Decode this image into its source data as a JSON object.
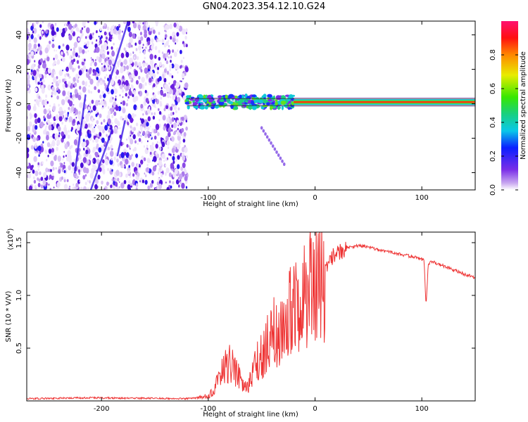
{
  "figure": {
    "title": "GN04.2023.354.12.10.G24"
  },
  "chart_data": [
    {
      "type": "heatmap",
      "title": "GN04.2023.354.12.10.G24",
      "xlabel": "Height of straight line (km)",
      "ylabel": "Frequency (Hz)",
      "xlim": [
        -270,
        150
      ],
      "ylim": [
        -50,
        48
      ],
      "xticks": [
        -200,
        -100,
        0,
        100
      ],
      "xtick_labels": [
        "-200",
        "-100",
        "0",
        "100"
      ],
      "yticks": [
        -40,
        -20,
        0,
        20,
        40
      ],
      "ytick_labels": [
        "-40",
        "-20",
        "0",
        "20",
        "40"
      ],
      "colorbar": {
        "label": "Normalized spectral amplitude",
        "range": [
          0,
          1
        ],
        "ticks": [
          0.0,
          0.2,
          0.4,
          0.6,
          0.8
        ],
        "tick_labels": [
          "0.0",
          "0.2",
          "0.4",
          "0.6",
          "0.8"
        ]
      },
      "features": [
        {
          "name": "noise-region",
          "x_range": [
            -270,
            -120
          ],
          "freq_range": [
            -50,
            48
          ],
          "amplitude": 0.1
        },
        {
          "name": "signal-band",
          "x_range": [
            -120,
            150
          ],
          "freq_center": 1,
          "amplitude": 0.8
        },
        {
          "name": "drift-streak",
          "x_start": -50,
          "x_end": -28,
          "freq_start": -14,
          "freq_end": -36,
          "amplitude": 0.15
        }
      ]
    },
    {
      "type": "line",
      "xlabel": "Height of straight line (km)",
      "ylabel": "SNR (10 * V/V)",
      "scale_label": "(x10^4)",
      "scale_base": "(x10",
      "scale_exp": "4",
      "scale_close": ")",
      "xlim": [
        -270,
        150
      ],
      "ylim": [
        0,
        1.6
      ],
      "xticks": [
        -200,
        -100,
        0,
        100
      ],
      "xtick_labels": [
        "-200",
        "-100",
        "0",
        "100"
      ],
      "yticks": [
        0.5,
        1.0,
        1.5
      ],
      "ytick_labels": [
        "0.5",
        "1.0",
        "1.5"
      ],
      "color": "#ee3333",
      "series": [
        {
          "name": "SNR",
          "x": [
            -270,
            -240,
            -210,
            -180,
            -150,
            -120,
            -110,
            -100,
            -95,
            -90,
            -85,
            -80,
            -75,
            -70,
            -65,
            -60,
            -55,
            -50,
            -45,
            -40,
            -35,
            -30,
            -25,
            -20,
            -15,
            -10,
            -5,
            0,
            5,
            10,
            15,
            20,
            25,
            30,
            40,
            50,
            60,
            70,
            80,
            90,
            95,
            100,
            102,
            104,
            106,
            110,
            115,
            120,
            130,
            140,
            150
          ],
          "y": [
            0.02,
            0.025,
            0.03,
            0.025,
            0.025,
            0.02,
            0.03,
            0.05,
            0.1,
            0.2,
            0.3,
            0.35,
            0.3,
            0.2,
            0.12,
            0.2,
            0.35,
            0.45,
            0.55,
            0.7,
            0.6,
            0.7,
            0.8,
            0.85,
            0.9,
            1.0,
            1.1,
            1.2,
            1.15,
            1.25,
            1.35,
            1.4,
            1.42,
            1.45,
            1.47,
            1.46,
            1.43,
            1.41,
            1.39,
            1.37,
            1.36,
            1.34,
            1.35,
            0.9,
            1.3,
            1.32,
            1.3,
            1.28,
            1.24,
            1.2,
            1.17
          ]
        }
      ]
    }
  ]
}
